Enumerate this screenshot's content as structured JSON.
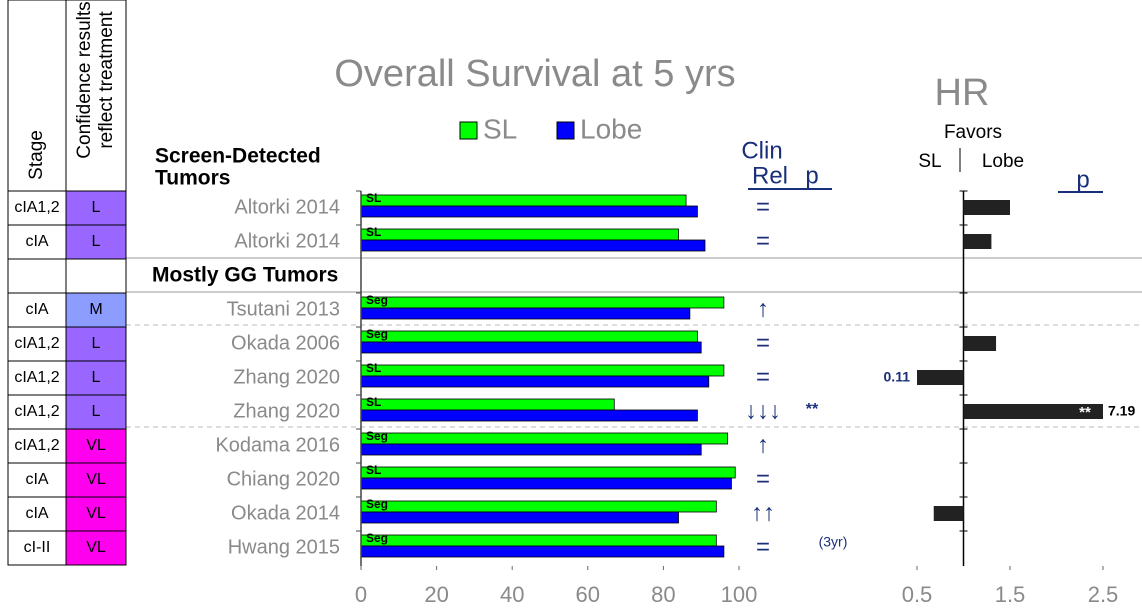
{
  "table": {
    "headers": [
      [
        "Stage"
      ],
      [
        "Confidence results",
        "reflect treatment"
      ]
    ],
    "rows": [
      [
        "cIA1,2",
        "L"
      ],
      [
        "cIA",
        "L"
      ],
      [
        "cIA",
        "M"
      ],
      [
        "cIA1,2",
        "L"
      ],
      [
        "cIA1,2",
        "L"
      ],
      [
        "cIA1,2",
        "L"
      ],
      [
        "cIA1,2",
        "VL"
      ],
      [
        "cIA",
        "VL"
      ],
      [
        "cIA",
        "VL"
      ],
      [
        "cI-II",
        "VL"
      ]
    ],
    "confidence_colors": {
      "L": "#9966ff",
      "M": "#8c9cff",
      "VL": "#ff00ee"
    }
  },
  "groups": [
    {
      "label_lines": [
        "Screen-Detected",
        "Tumors"
      ],
      "rows": 2
    },
    {
      "label_lines": [
        "Mostly GG Tumors"
      ],
      "rows": 8
    }
  ],
  "chart_data": [
    {
      "type": "bar",
      "title": "Overall Survival at 5 yrs",
      "categories": [
        "Altorki 2014",
        "Altorki 2014",
        "Tsutani 2013",
        "Okada 2006",
        "Zhang 2020",
        "Zhang 2020",
        "Kodama 2016",
        "Chiang 2020",
        "Okada 2014",
        "Hwang 2015"
      ],
      "series": [
        {
          "name": "SL",
          "color": "#00ff00",
          "values": [
            86,
            84,
            96,
            89,
            96,
            67,
            97,
            99,
            94,
            94
          ]
        },
        {
          "name": "Lobe",
          "color": "#0000ff",
          "values": [
            89,
            91,
            87,
            90,
            92,
            89,
            90,
            98,
            84,
            96
          ]
        }
      ],
      "bar_labels": [
        "SL",
        "SL",
        "Seg",
        "Seg",
        "SL",
        "SL",
        "Seg",
        "SL",
        "Seg",
        "Seg"
      ],
      "xlim": [
        0,
        100
      ],
      "xticks": [
        0,
        20,
        40,
        60,
        80,
        100
      ],
      "clin_rel_header": [
        "Clin",
        "Rel",
        "p"
      ],
      "clin_rel": [
        "=",
        "=",
        "↑",
        "=",
        "=",
        "↓↓↓",
        "↑",
        "=",
        "↑↑",
        "="
      ],
      "p": [
        null,
        null,
        null,
        null,
        null,
        "**",
        null,
        null,
        null,
        null
      ],
      "notes": [
        null,
        null,
        null,
        null,
        null,
        null,
        null,
        null,
        null,
        "(3yr)"
      ]
    },
    {
      "type": "bar",
      "title": "HR",
      "header": [
        "Favors",
        "SL",
        "Lobe",
        "p"
      ],
      "values": [
        1.5,
        1.3,
        null,
        1.35,
        0.11,
        7.19,
        null,
        null,
        0.68,
        null
      ],
      "p": [
        null,
        null,
        null,
        null,
        null,
        "**",
        null,
        null,
        null,
        null
      ],
      "reference": 1,
      "color": "#222222",
      "xlim": [
        0.5,
        2.5
      ],
      "xticks": [
        0.5,
        1.5,
        2.5
      ]
    }
  ]
}
